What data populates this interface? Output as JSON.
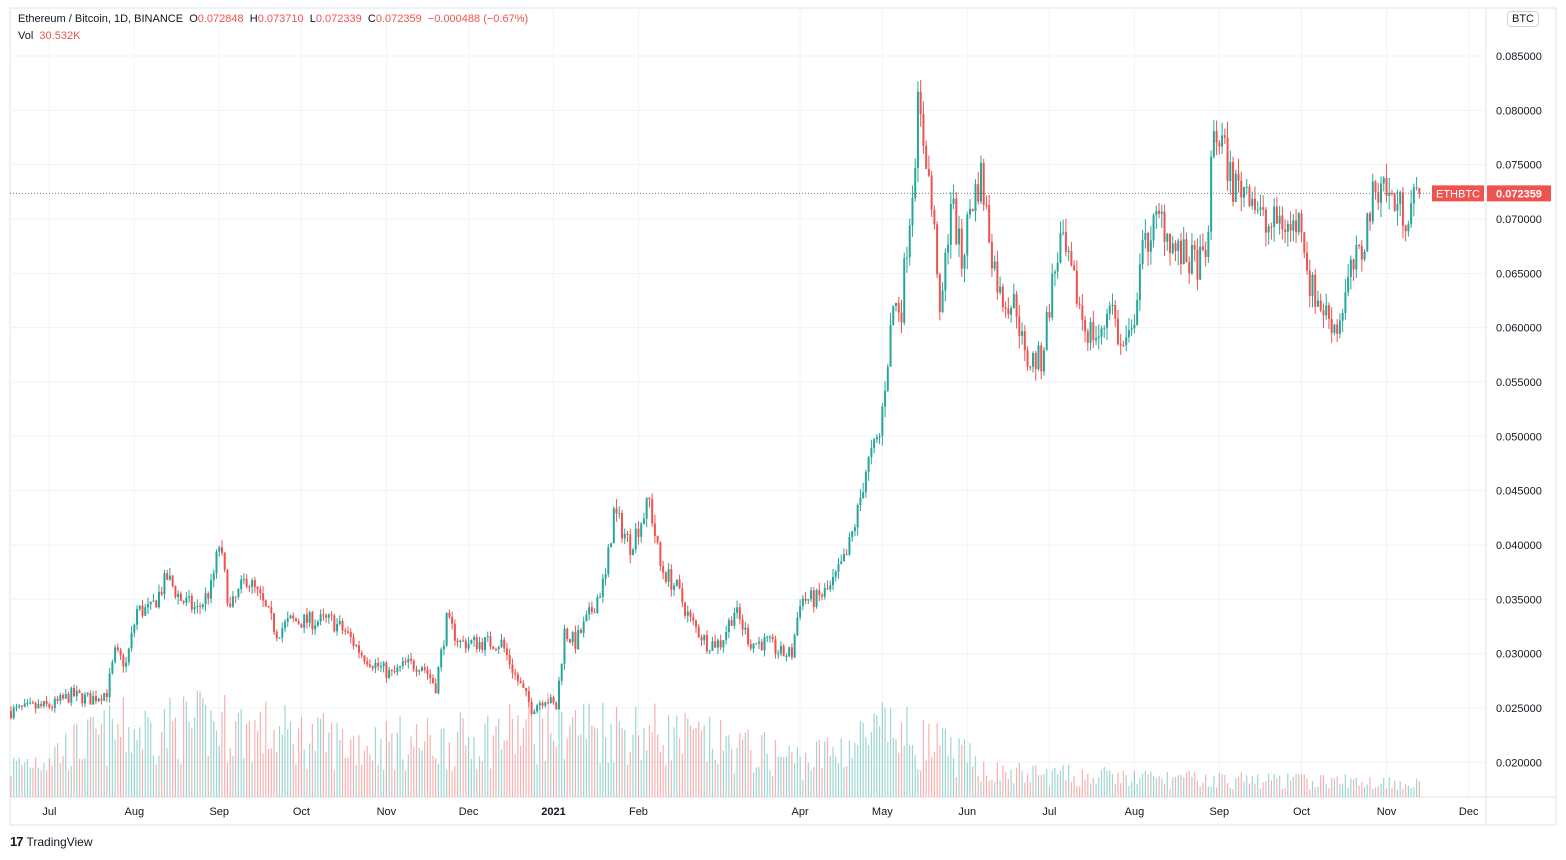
{
  "header": {
    "symbol_title": "Ethereum / Bitcoin, 1D, BINANCE",
    "o_label": "O",
    "o_value": "0.072848",
    "h_label": "H",
    "h_value": "0.073710",
    "l_label": "L",
    "l_value": "0.072339",
    "c_label": "C",
    "c_value": "0.072359",
    "change": "−0.000488 (−0.67%)",
    "vol_label": "Vol",
    "vol_value": "30.532K"
  },
  "currency_button": "BTC",
  "price_tag": {
    "symbol": "ETHBTC",
    "value": "0.072359"
  },
  "branding": "TradingView",
  "colors": {
    "up": "#26a69a",
    "down": "#ef5350",
    "grid": "#f0f3fa",
    "text": "#131722"
  },
  "chart_data": {
    "type": "candlestick",
    "title": "Ethereum / Bitcoin, 1D, BINANCE",
    "start_date": "2020-06-17",
    "ylim": [
      0.0165,
      0.0895
    ],
    "y_ticks": [
      "0.085000",
      "0.080000",
      "0.075000",
      "0.070000",
      "0.065000",
      "0.060000",
      "0.055000",
      "0.050000",
      "0.045000",
      "0.040000",
      "0.035000",
      "0.030000",
      "0.025000",
      "0.020000"
    ],
    "y_tick_values": [
      0.085,
      0.08,
      0.075,
      0.07,
      0.065,
      0.06,
      0.055,
      0.05,
      0.045,
      0.04,
      0.035,
      0.03,
      0.025,
      0.02
    ],
    "x_ticks": [
      {
        "label": "Jul",
        "day": 14
      },
      {
        "label": "Aug",
        "day": 45
      },
      {
        "label": "Sep",
        "day": 76
      },
      {
        "label": "Oct",
        "day": 106
      },
      {
        "label": "Nov",
        "day": 137
      },
      {
        "label": "Dec",
        "day": 167
      },
      {
        "label": "2021",
        "day": 198
      },
      {
        "label": "Feb",
        "day": 229
      },
      {
        "label": "Apr",
        "day": 288
      },
      {
        "label": "May",
        "day": 318
      },
      {
        "label": "Jun",
        "day": 349
      },
      {
        "label": "Jul",
        "day": 379
      },
      {
        "label": "Aug",
        "day": 410
      },
      {
        "label": "Sep",
        "day": 441
      },
      {
        "label": "Oct",
        "day": 471
      },
      {
        "label": "Nov",
        "day": 502
      },
      {
        "label": "Dec",
        "day": 532
      }
    ],
    "close_anchor_days": [
      0,
      7,
      15,
      22,
      29,
      35,
      38,
      42,
      46,
      51,
      57,
      62,
      68,
      73,
      76,
      80,
      86,
      91,
      97,
      102,
      110,
      117,
      122,
      128,
      133,
      139,
      144,
      150,
      155,
      159,
      164,
      172,
      179,
      184,
      190,
      195,
      199,
      202,
      206,
      212,
      217,
      220,
      226,
      233,
      237,
      243,
      248,
      254,
      259,
      264,
      270,
      276,
      281,
      285,
      288,
      294,
      299,
      305,
      309,
      312,
      317,
      319,
      322,
      325,
      327,
      329,
      331,
      334,
      338,
      339,
      343,
      347,
      350,
      354,
      358,
      361,
      367,
      370,
      376,
      380,
      383,
      389,
      392,
      398,
      401,
      405,
      409,
      412,
      416,
      420,
      425,
      431,
      436,
      439,
      442,
      446,
      452,
      458,
      463,
      467,
      471,
      474,
      478,
      484,
      489,
      493,
      496,
      500,
      503,
      509,
      514
    ],
    "close_anchor_values": [
      0.0247,
      0.025,
      0.0252,
      0.0262,
      0.0258,
      0.0265,
      0.03,
      0.029,
      0.034,
      0.034,
      0.037,
      0.035,
      0.034,
      0.036,
      0.04,
      0.034,
      0.037,
      0.035,
      0.032,
      0.033,
      0.033,
      0.033,
      0.032,
      0.03,
      0.029,
      0.028,
      0.029,
      0.029,
      0.027,
      0.033,
      0.031,
      0.031,
      0.031,
      0.028,
      0.025,
      0.026,
      0.025,
      0.032,
      0.031,
      0.034,
      0.037,
      0.043,
      0.04,
      0.044,
      0.038,
      0.036,
      0.033,
      0.031,
      0.031,
      0.034,
      0.031,
      0.031,
      0.03,
      0.03,
      0.035,
      0.035,
      0.036,
      0.039,
      0.043,
      0.047,
      0.05,
      0.055,
      0.062,
      0.062,
      0.068,
      0.073,
      0.08,
      0.076,
      0.066,
      0.06,
      0.072,
      0.066,
      0.071,
      0.074,
      0.067,
      0.063,
      0.062,
      0.057,
      0.057,
      0.064,
      0.068,
      0.063,
      0.06,
      0.059,
      0.063,
      0.058,
      0.059,
      0.066,
      0.069,
      0.07,
      0.067,
      0.066,
      0.066,
      0.078,
      0.077,
      0.073,
      0.073,
      0.069,
      0.07,
      0.069,
      0.07,
      0.064,
      0.062,
      0.06,
      0.065,
      0.067,
      0.071,
      0.074,
      0.072,
      0.0705,
      0.0724
    ],
    "volume_anchor_days": [
      0,
      40,
      76,
      120,
      160,
      200,
      230,
      290,
      320,
      340,
      360,
      420,
      514
    ],
    "volume_relative": [
      0.25,
      0.55,
      0.6,
      0.45,
      0.45,
      0.6,
      0.55,
      0.3,
      0.55,
      0.4,
      0.2,
      0.15,
      0.12
    ]
  }
}
